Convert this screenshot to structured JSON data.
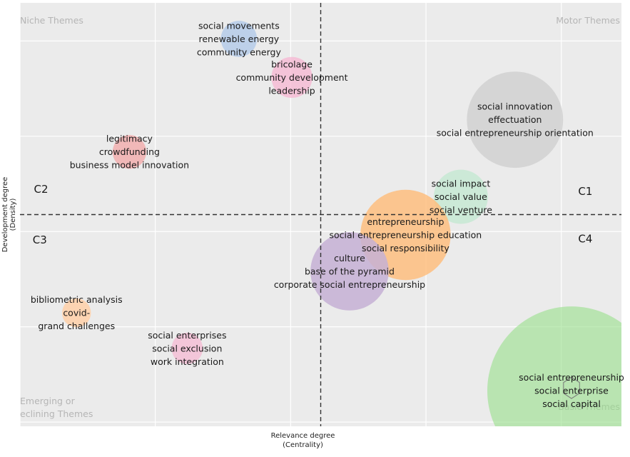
{
  "chart_data": {
    "type": "scatter",
    "subtype": "thematic-map",
    "xlabel": [
      "Relevance degree",
      "(Centrality)"
    ],
    "ylabel": [
      "Development degree",
      "(Density)"
    ],
    "xlim": [
      0,
      100
    ],
    "ylim": [
      0,
      100
    ],
    "divider": {
      "x": 50,
      "y": 50
    },
    "grid": true,
    "quadrant_titles": [
      {
        "id": "niche",
        "lines": [
          "Niche Themes"
        ],
        "position": "top-left"
      },
      {
        "id": "motor",
        "lines": [
          "Motor Themes"
        ],
        "position": "top-right"
      },
      {
        "id": "emerging",
        "lines": [
          "Emerging or",
          "eclining Themes"
        ],
        "position": "bottom-left"
      },
      {
        "id": "basic",
        "lines": [
          "Basic Themes"
        ],
        "position": "bottom-right"
      }
    ],
    "quadrant_labels": [
      {
        "label": "C1",
        "x": 94,
        "y": 55.5
      },
      {
        "label": "C2",
        "x": 3.5,
        "y": 56
      },
      {
        "label": "C3",
        "x": 3.3,
        "y": 44
      },
      {
        "label": "C4",
        "x": 94,
        "y": 44.3
      }
    ],
    "series": [
      {
        "name": "social movements cluster",
        "x": 36.4,
        "y": 91.5,
        "size": 3,
        "color": "#aec7e8",
        "opacity": 0.75,
        "labels": [
          "social movements",
          "renewable energy",
          "community energy"
        ]
      },
      {
        "name": "bricolage cluster",
        "x": 45.2,
        "y": 82.4,
        "size": 3.4,
        "color": "#f7b6d2",
        "opacity": 0.75,
        "labels": [
          "bricolage",
          "community development",
          "leadership"
        ]
      },
      {
        "name": "social innovation cluster",
        "x": 82.3,
        "y": 72.4,
        "size": 8,
        "color": "#cfcfcf",
        "opacity": 0.8,
        "labels": [
          "social innovation",
          "effectuation",
          "social entrepreneurship orientation"
        ]
      },
      {
        "name": "legitimacy cluster",
        "x": 18.2,
        "y": 64.8,
        "size": 2.8,
        "color": "#f4a3a3",
        "opacity": 0.7,
        "labels": [
          "legitimacy",
          "crowdfunding",
          "business model innovation"
        ]
      },
      {
        "name": "social impact cluster",
        "x": 73.3,
        "y": 54.2,
        "size": 4.5,
        "color": "#c7e9d4",
        "opacity": 0.85,
        "labels": [
          "social impact",
          "social value",
          "social venture"
        ]
      },
      {
        "name": "entrepreneurship cluster",
        "x": 64.1,
        "y": 45.2,
        "size": 7.5,
        "color": "#ffbb78",
        "opacity": 0.8,
        "labels": [
          "entrepreneurship",
          "social entrepreneurship education",
          "social responsibility"
        ]
      },
      {
        "name": "culture cluster",
        "x": 54.8,
        "y": 36.6,
        "size": 6.5,
        "color": "#c5b0d5",
        "opacity": 0.85,
        "labels": [
          "culture",
          "base of the pyramid",
          "corporate social entrepreneurship"
        ]
      },
      {
        "name": "bibliometric cluster",
        "x": 9.4,
        "y": 26.8,
        "size": 2.4,
        "color": "#ffd0a8",
        "opacity": 0.85,
        "labels": [
          "bibliometric analysis",
          "covid-",
          "grand challenges"
        ]
      },
      {
        "name": "social enterprises cluster",
        "x": 27.8,
        "y": 18.4,
        "size": 2.6,
        "color": "#f7b6d2",
        "opacity": 0.7,
        "labels": [
          "social enterprises",
          "social exclusion",
          "work integration"
        ]
      },
      {
        "name": "social entrepreneurship cluster",
        "x": 91.7,
        "y": 8.4,
        "size": 14,
        "color": "#98df8a",
        "opacity": 0.6,
        "labels": [
          "social entrepreneurship",
          "social enterprise",
          "social capital"
        ]
      }
    ]
  }
}
